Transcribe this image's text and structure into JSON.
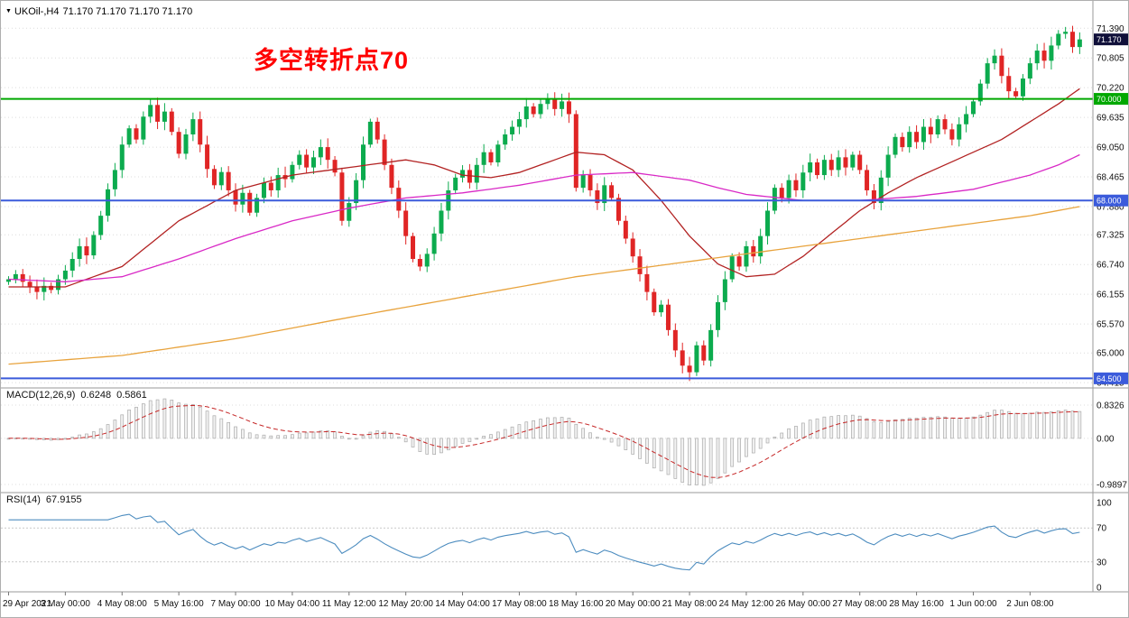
{
  "header": {
    "symbol": "UKOil-,H4",
    "quotes": "71.170 71.170 71.170 71.170"
  },
  "annotation": {
    "text": "多空转折点70",
    "color": "#FF0000"
  },
  "chart_data": [
    {
      "type": "candlestick",
      "title": "UKOil-,H4",
      "symbol": "UKOil-",
      "timeframe": "H4",
      "up_color": "#0CAB4E",
      "down_color": "#E02525",
      "y_range": [
        64.4,
        71.75
      ],
      "y_axis_labels": [
        "71.390",
        "70.805",
        "70.220",
        "69.635",
        "69.050",
        "68.465",
        "67.880",
        "67.325",
        "66.740",
        "66.155",
        "65.570",
        "65.000",
        "64.415"
      ],
      "x_label_step": 8,
      "x_labels": [
        "29 Apr 2021",
        "3 May 00:00",
        "4 May 08:00",
        "5 May 16:00",
        "7 May 00:00",
        "10 May 04:00",
        "11 May 12:00",
        "12 May 20:00",
        "14 May 04:00",
        "17 May 08:00",
        "18 May 16:00",
        "20 May 00:00",
        "21 May 08:00",
        "24 May 12:00",
        "26 May 00:00",
        "27 May 08:00",
        "28 May 16:00",
        "1 Jun 00:00",
        "2 Jun 08:00"
      ],
      "open_first": 66.4,
      "wick": {
        "base": 0.06,
        "variation": 0.12
      },
      "closes": [
        66.45,
        66.55,
        66.4,
        66.3,
        66.2,
        66.32,
        66.24,
        66.45,
        66.62,
        66.85,
        67.1,
        66.92,
        67.32,
        67.7,
        68.22,
        68.6,
        69.1,
        69.42,
        69.2,
        69.65,
        69.88,
        69.55,
        69.75,
        69.35,
        68.92,
        69.3,
        69.6,
        69.1,
        68.62,
        68.3,
        68.56,
        68.2,
        67.92,
        68.15,
        67.76,
        68.05,
        68.35,
        68.2,
        68.5,
        68.42,
        68.7,
        68.9,
        68.65,
        68.85,
        69.05,
        68.8,
        68.55,
        67.6,
        67.95,
        68.4,
        69.1,
        69.55,
        69.2,
        68.7,
        68.25,
        67.8,
        67.3,
        66.85,
        66.7,
        66.95,
        67.35,
        67.8,
        68.2,
        68.45,
        68.6,
        68.35,
        68.7,
        68.95,
        68.75,
        69.1,
        69.3,
        69.45,
        69.6,
        69.85,
        69.7,
        69.9,
        70.0,
        69.8,
        69.95,
        69.7,
        68.25,
        68.5,
        68.2,
        67.95,
        68.3,
        68.05,
        67.6,
        67.25,
        66.9,
        66.55,
        66.2,
        65.8,
        65.95,
        65.45,
        65.05,
        64.75,
        64.62,
        65.15,
        64.85,
        65.45,
        66.0,
        66.45,
        66.9,
        66.7,
        67.1,
        66.9,
        67.3,
        67.8,
        68.25,
        68.05,
        68.4,
        68.2,
        68.55,
        68.75,
        68.5,
        68.8,
        68.6,
        68.85,
        68.65,
        68.9,
        68.6,
        68.2,
        67.95,
        68.45,
        68.9,
        69.25,
        69.05,
        69.35,
        69.15,
        69.45,
        69.3,
        69.6,
        69.4,
        69.2,
        69.5,
        69.7,
        69.95,
        70.3,
        70.7,
        70.85,
        70.45,
        70.15,
        70.05,
        70.4,
        70.7,
        70.95,
        70.75,
        71.05,
        71.28,
        71.32,
        71.02,
        71.17
      ],
      "moving_averages": [
        {
          "name": "fast-red",
          "color": "#B22222",
          "points": [
            [
              0,
              66.3
            ],
            [
              8,
              66.3
            ],
            [
              16,
              66.7
            ],
            [
              24,
              67.6
            ],
            [
              32,
              68.2
            ],
            [
              40,
              68.5
            ],
            [
              48,
              68.65
            ],
            [
              56,
              68.8
            ],
            [
              60,
              68.7
            ],
            [
              64,
              68.5
            ],
            [
              68,
              68.45
            ],
            [
              72,
              68.55
            ],
            [
              76,
              68.75
            ],
            [
              80,
              68.95
            ],
            [
              84,
              68.9
            ],
            [
              88,
              68.6
            ],
            [
              92,
              68.0
            ],
            [
              96,
              67.3
            ],
            [
              100,
              66.75
            ],
            [
              104,
              66.5
            ],
            [
              108,
              66.55
            ],
            [
              112,
              66.9
            ],
            [
              116,
              67.35
            ],
            [
              120,
              67.8
            ],
            [
              124,
              68.15
            ],
            [
              128,
              68.45
            ],
            [
              132,
              68.7
            ],
            [
              136,
              68.95
            ],
            [
              140,
              69.2
            ],
            [
              144,
              69.55
            ],
            [
              148,
              69.9
            ],
            [
              151,
              70.2
            ]
          ]
        },
        {
          "name": "mid-magenta",
          "color": "#D929C6",
          "points": [
            [
              0,
              66.45
            ],
            [
              8,
              66.4
            ],
            [
              16,
              66.5
            ],
            [
              24,
              66.85
            ],
            [
              32,
              67.25
            ],
            [
              40,
              67.6
            ],
            [
              48,
              67.85
            ],
            [
              56,
              68.05
            ],
            [
              64,
              68.15
            ],
            [
              72,
              68.3
            ],
            [
              80,
              68.5
            ],
            [
              88,
              68.55
            ],
            [
              96,
              68.4
            ],
            [
              100,
              68.25
            ],
            [
              104,
              68.12
            ],
            [
              112,
              68.0
            ],
            [
              120,
              68.0
            ],
            [
              128,
              68.08
            ],
            [
              136,
              68.22
            ],
            [
              144,
              68.5
            ],
            [
              148,
              68.7
            ],
            [
              151,
              68.9
            ]
          ]
        },
        {
          "name": "slow-orange",
          "color": "#E8A33D",
          "points": [
            [
              0,
              64.78
            ],
            [
              16,
              64.95
            ],
            [
              32,
              65.28
            ],
            [
              48,
              65.7
            ],
            [
              64,
              66.1
            ],
            [
              80,
              66.5
            ],
            [
              96,
              66.8
            ],
            [
              112,
              67.1
            ],
            [
              128,
              67.4
            ],
            [
              144,
              67.7
            ],
            [
              151,
              67.88
            ]
          ]
        }
      ],
      "hlines": [
        {
          "value": 70.0,
          "label": "70.000",
          "color": "#00A800"
        },
        {
          "value": 68.0,
          "label": "68.000",
          "color": "#3B5BDB"
        },
        {
          "value": 64.5,
          "label": "64.500",
          "color": "#3B5BDB"
        }
      ],
      "last_price": {
        "value": 71.17,
        "label": "71.170",
        "color": "#10103A"
      }
    },
    {
      "type": "macd",
      "label": "MACD(12,26,9)",
      "values": [
        "0.6248",
        "0.5861"
      ],
      "params": [
        12,
        26,
        9
      ],
      "axis_labels": [
        "0.8326",
        "0.00",
        "-0.9897"
      ],
      "histogram_fill": "#F1F1F1",
      "histogram_stroke": "#ABABAB",
      "signal_color": "#C62828"
    },
    {
      "type": "rsi",
      "label": "RSI(14)",
      "value": "67.9155",
      "period": 14,
      "axis_labels": [
        "100",
        "70",
        "30",
        "0"
      ],
      "levels": [
        70,
        30
      ],
      "line_color": "#4C8CBF"
    }
  ]
}
